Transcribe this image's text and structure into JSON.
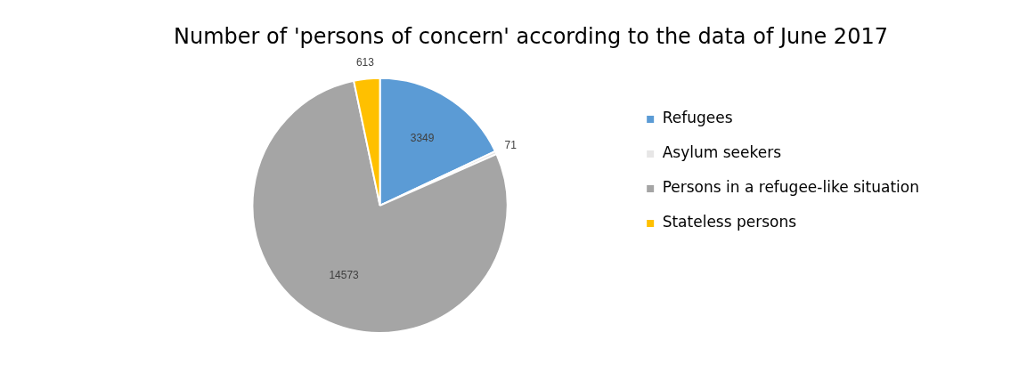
{
  "chart_data": {
    "type": "pie",
    "title": "Number of 'persons of concern' according to the data of June 2017",
    "categories": [
      "Refugees",
      "Asylum seekers",
      "Persons in a refugee-like situation",
      "Stateless persons"
    ],
    "values": [
      3349,
      71,
      14573,
      613
    ],
    "colors": [
      "#5b9bd5",
      "#e7e6e6",
      "#a5a5a5",
      "#ffc000"
    ],
    "data_labels": true,
    "legend": "right"
  }
}
